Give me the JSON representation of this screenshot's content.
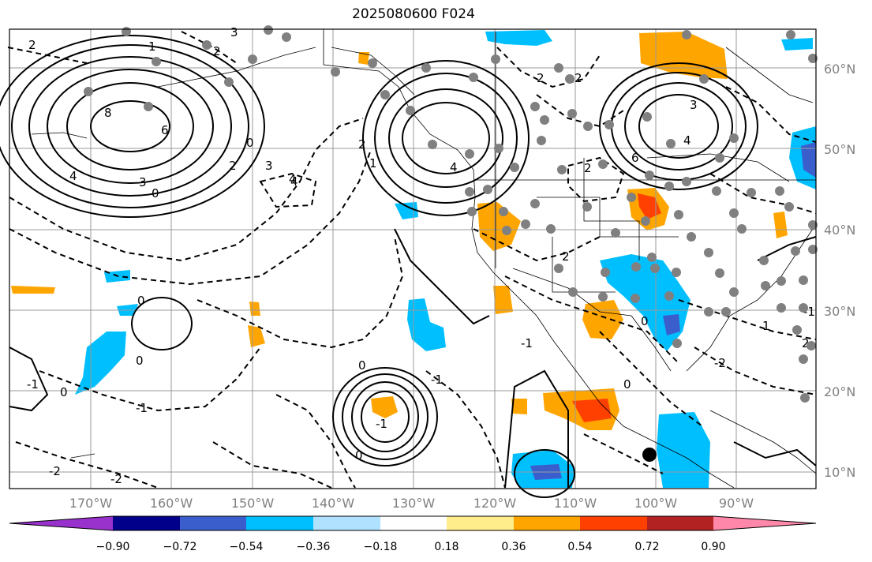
{
  "title": "2025080600 F024",
  "map": {
    "lat_labels": [
      "60°N",
      "50°N",
      "40°N",
      "30°N",
      "20°N",
      "10°N"
    ],
    "lon_labels": [
      "170°W",
      "160°W",
      "150°W",
      "140°W",
      "130°W",
      "120°W",
      "110°W",
      "100°W",
      "90°W"
    ],
    "grid": true,
    "contour_labels": [
      "2",
      "1",
      "3",
      "2",
      "8",
      "6",
      "4",
      "3",
      "0",
      "2",
      "3",
      "4",
      "2",
      "1",
      "0",
      "4",
      "2",
      "2",
      "6",
      "4",
      "3",
      "4",
      "2",
      "0",
      "-1",
      "0",
      "-1",
      "0",
      "-2",
      "0",
      "-1",
      "0",
      "-2",
      "-1",
      "-2",
      "1",
      "0",
      "-1",
      "0",
      "2",
      "-1",
      "2"
    ],
    "observation_points": true
  },
  "colorbar": {
    "colors": [
      "#9932CC",
      "#00008B",
      "#3A5FCD",
      "#00BFFF",
      "#B0E2FF",
      "#FFFFFF",
      "#FFEC8B",
      "#FFA500",
      "#FF4000",
      "#B22222",
      "#FF88AA"
    ],
    "tick_labels": [
      "−0.90",
      "−0.72",
      "−0.54",
      "−0.36",
      "−0.18",
      "0.18",
      "0.36",
      "0.54",
      "0.72",
      "0.90"
    ],
    "extend": "both"
  }
}
